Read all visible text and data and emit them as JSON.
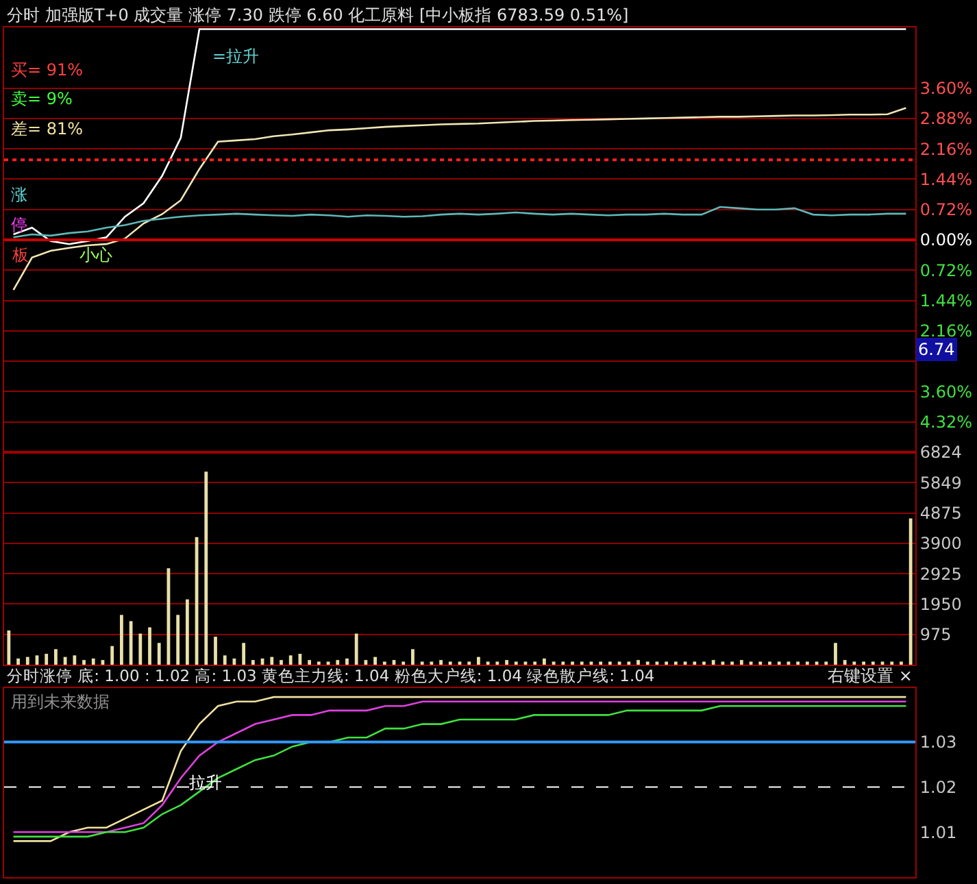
{
  "chart_data": [
    {
      "type": "line",
      "title": "分时 加强版T+0 成交量 涨停 7.30 跌停 6.60 化工原料 [中小板指 6783.59 0.51%]",
      "categories": [
        null,
        null,
        null,
        null,
        null,
        null,
        null,
        null,
        null,
        null,
        null,
        null,
        null,
        null,
        null,
        null,
        null,
        null,
        null,
        null,
        null,
        null,
        null,
        null,
        null,
        null,
        null,
        null,
        null,
        null,
        null,
        null,
        null,
        null,
        null,
        null,
        null,
        null,
        null,
        null,
        null,
        null,
        null,
        null,
        null,
        null,
        null,
        null,
        null
      ],
      "series": [
        {
          "color": "#ffffff",
          "values": [
            0.13,
            0.29,
            -0.03,
            -0.1,
            -0.03,
            0.06,
            0.55,
            0.87,
            1.52,
            2.42,
            5.0,
            5.0,
            5.0,
            5.0,
            5.0,
            5.0,
            5.0,
            5.0,
            5.0,
            5.0,
            5.0,
            5.0,
            5.0,
            5.0,
            5.0,
            5.0,
            5.0,
            5.0,
            5.0,
            5.0,
            5.0,
            5.0,
            5.0,
            5.0,
            5.0,
            5.0,
            5.0,
            5.0,
            5.0,
            5.0,
            5.0,
            5.0,
            5.0,
            5.0,
            5.0,
            5.0,
            5.0,
            5.0,
            5.0
          ]
        },
        {
          "color": "#f0e6b4",
          "values": [
            -1.19,
            -0.42,
            -0.26,
            -0.19,
            -0.13,
            -0.1,
            0.03,
            0.39,
            0.61,
            0.94,
            1.68,
            2.33,
            2.36,
            2.39,
            2.46,
            2.5,
            2.55,
            2.6,
            2.62,
            2.65,
            2.68,
            2.7,
            2.72,
            2.74,
            2.75,
            2.76,
            2.78,
            2.8,
            2.82,
            2.83,
            2.84,
            2.85,
            2.86,
            2.87,
            2.88,
            2.89,
            2.9,
            2.91,
            2.92,
            2.92,
            2.93,
            2.94,
            2.95,
            2.95,
            2.96,
            2.97,
            2.97,
            2.98,
            3.13
          ]
        },
        {
          "color": "#5fb8b8",
          "values": [
            0.06,
            0.13,
            0.1,
            0.16,
            0.2,
            0.29,
            0.35,
            0.45,
            0.5,
            0.55,
            0.58,
            0.6,
            0.62,
            0.6,
            0.58,
            0.57,
            0.6,
            0.58,
            0.55,
            0.58,
            0.57,
            0.55,
            0.56,
            0.6,
            0.62,
            0.6,
            0.62,
            0.65,
            0.62,
            0.6,
            0.62,
            0.6,
            0.58,
            0.6,
            0.6,
            0.62,
            0.6,
            0.6,
            0.78,
            0.75,
            0.72,
            0.72,
            0.75,
            0.6,
            0.58,
            0.6,
            0.6,
            0.62,
            0.62
          ]
        }
      ],
      "ylim": [
        -5.04,
        5.04
      ],
      "yticks": [
        {
          "value": 3.6,
          "label": "3.60%"
        },
        {
          "value": 2.88,
          "label": "2.88%"
        },
        {
          "value": 2.16,
          "label": "2.16%"
        },
        {
          "value": 1.44,
          "label": "1.44%"
        },
        {
          "value": 0.72,
          "label": "0.72%"
        },
        {
          "value": 0,
          "label": "0.00%"
        },
        {
          "value": -0.72,
          "label": "0.72%"
        },
        {
          "value": -1.44,
          "label": "1.44%"
        },
        {
          "value": -2.16,
          "label": "2.16%"
        },
        {
          "value": -2.88,
          "label": null
        },
        {
          "value": -3.6,
          "label": "3.60%"
        },
        {
          "value": -4.32,
          "label": "4.32%"
        }
      ],
      "ref_lines": [
        {
          "axis": "y",
          "value": 0,
          "color": "#cc0000"
        },
        {
          "axis": "y",
          "value": 1.9,
          "color": "#ff2020",
          "line_style": "dotted"
        }
      ],
      "annotations": [
        "买= 91%",
        "卖= 9%",
        "差= 81%",
        "涨",
        "停",
        "板",
        "小心",
        "=拉升",
        "6.74"
      ],
      "grid": "y",
      "tick_labels": "y"
    },
    {
      "type": "bar",
      "categories": [
        null,
        null,
        null,
        null,
        null,
        null,
        null,
        null,
        null,
        null,
        null,
        null,
        null,
        null,
        null,
        null,
        null,
        null,
        null,
        null,
        null,
        null,
        null,
        null,
        null,
        null,
        null,
        null,
        null,
        null,
        null,
        null,
        null,
        null,
        null,
        null,
        null,
        null,
        null,
        null,
        null,
        null,
        null,
        null,
        null,
        null,
        null,
        null,
        null,
        null,
        null,
        null,
        null,
        null,
        null,
        null,
        null,
        null,
        null,
        null,
        null,
        null,
        null,
        null,
        null,
        null,
        null,
        null,
        null,
        null,
        null,
        null,
        null,
        null,
        null,
        null,
        null,
        null,
        null,
        null,
        null,
        null,
        null,
        null,
        null,
        null,
        null,
        null,
        null,
        null,
        null,
        null,
        null,
        null,
        null,
        null,
        null
      ],
      "color": "#e8e0a8",
      "values": [
        1100,
        200,
        250,
        300,
        350,
        500,
        250,
        300,
        150,
        200,
        150,
        600,
        1600,
        1400,
        1000,
        1200,
        700,
        3100,
        1600,
        2100,
        4100,
        6200,
        900,
        300,
        200,
        700,
        150,
        200,
        250,
        150,
        300,
        350,
        150,
        100,
        100,
        150,
        200,
        1000,
        150,
        250,
        100,
        150,
        100,
        500,
        100,
        100,
        150,
        100,
        100,
        100,
        250,
        100,
        100,
        150,
        100,
        100,
        100,
        200,
        100,
        100,
        100,
        100,
        100,
        100,
        100,
        100,
        100,
        150,
        100,
        100,
        100,
        100,
        100,
        100,
        100,
        150,
        100,
        100,
        150,
        100,
        100,
        100,
        100,
        100,
        100,
        100,
        100,
        100,
        700,
        150,
        100,
        100,
        100,
        100,
        100,
        100,
        4700
      ],
      "ylim": [
        0,
        6824
      ],
      "yticks": [
        975,
        1950,
        2925,
        3900,
        4875,
        5849,
        6824
      ],
      "grid": "y",
      "tick_labels": "y"
    },
    {
      "type": "line",
      "title": "分时涨停 底: 1.00 : 1.02 高: 1.03 黄色主力线: 1.04 粉色大户线: 1.04 绿色散户线: 1.04",
      "categories": [
        null,
        null,
        null,
        null,
        null,
        null,
        null,
        null,
        null,
        null,
        null,
        null,
        null,
        null,
        null,
        null,
        null,
        null,
        null,
        null,
        null,
        null,
        null,
        null,
        null,
        null,
        null,
        null,
        null,
        null,
        null,
        null,
        null,
        null,
        null,
        null,
        null,
        null,
        null,
        null,
        null,
        null,
        null,
        null,
        null,
        null,
        null,
        null,
        null
      ],
      "series": [
        {
          "color": "#f0e0a0",
          "values": [
            1.008,
            1.008,
            1.008,
            1.01,
            1.011,
            1.011,
            1.013,
            1.015,
            1.017,
            1.028,
            1.034,
            1.038,
            1.039,
            1.039,
            1.04,
            1.04,
            1.04,
            1.04,
            1.04,
            1.04,
            1.04,
            1.04,
            1.04,
            1.04,
            1.04,
            1.04,
            1.04,
            1.04,
            1.04,
            1.04,
            1.04,
            1.04,
            1.04,
            1.04,
            1.04,
            1.04,
            1.04,
            1.04,
            1.04,
            1.04,
            1.04,
            1.04,
            1.04,
            1.04,
            1.04,
            1.04,
            1.04,
            1.04,
            1.04
          ]
        },
        {
          "color": "#e040e0",
          "values": [
            1.01,
            1.01,
            1.01,
            1.01,
            1.01,
            1.01,
            1.011,
            1.012,
            1.016,
            1.022,
            1.027,
            1.03,
            1.032,
            1.034,
            1.035,
            1.036,
            1.036,
            1.037,
            1.037,
            1.037,
            1.038,
            1.038,
            1.039,
            1.039,
            1.039,
            1.039,
            1.039,
            1.039,
            1.039,
            1.039,
            1.039,
            1.039,
            1.039,
            1.039,
            1.039,
            1.039,
            1.039,
            1.039,
            1.039,
            1.039,
            1.039,
            1.039,
            1.039,
            1.039,
            1.039,
            1.039,
            1.039,
            1.039,
            1.039
          ]
        },
        {
          "color": "#40e040",
          "values": [
            1.009,
            1.009,
            1.009,
            1.009,
            1.009,
            1.01,
            1.01,
            1.011,
            1.014,
            1.016,
            1.019,
            1.022,
            1.024,
            1.026,
            1.027,
            1.029,
            1.03,
            1.03,
            1.031,
            1.031,
            1.033,
            1.033,
            1.034,
            1.034,
            1.035,
            1.035,
            1.035,
            1.035,
            1.036,
            1.036,
            1.036,
            1.036,
            1.036,
            1.037,
            1.037,
            1.037,
            1.037,
            1.037,
            1.038,
            1.038,
            1.038,
            1.038,
            1.038,
            1.038,
            1.038,
            1.038,
            1.038,
            1.038,
            1.038
          ]
        }
      ],
      "ylim": [
        1.0,
        1.042
      ],
      "yticks": [
        1.01,
        1.02,
        1.03
      ],
      "ref_lines": [
        {
          "axis": "y",
          "value": 1.03,
          "color": "#3399ff"
        },
        {
          "axis": "y",
          "value": 1.02,
          "color": "#ffffff",
          "line_style": "dashed"
        }
      ],
      "annotations": [
        "右键设置 ×",
        "用到未来数据",
        "拉升"
      ],
      "grid": false,
      "tick_labels": "y"
    }
  ]
}
